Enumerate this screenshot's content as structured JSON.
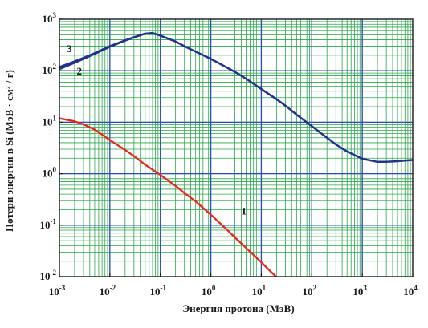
{
  "chart_data": {
    "type": "line",
    "title": "",
    "xlabel": "Энергия протона (МэВ)",
    "ylabel": "Потери энергии в Si (МэВ · см² / г)",
    "x_scale": "log",
    "y_scale": "log",
    "xlim": [
      0.001,
      10000
    ],
    "ylim": [
      0.01,
      1000
    ],
    "grid": true,
    "x_ticks": [
      {
        "base": "10",
        "exp": "-3",
        "value": 0.001
      },
      {
        "base": "10",
        "exp": "-2",
        "value": 0.01
      },
      {
        "base": "10",
        "exp": "-1",
        "value": 0.1
      },
      {
        "base": "10",
        "exp": "0",
        "value": 1
      },
      {
        "base": "10",
        "exp": "1",
        "value": 10
      },
      {
        "base": "10",
        "exp": "2",
        "value": 100
      },
      {
        "base": "10",
        "exp": "3",
        "value": 1000
      },
      {
        "base": "10",
        "exp": "4",
        "value": 10000
      }
    ],
    "y_ticks": [
      {
        "base": "10",
        "exp": "-2",
        "value": 0.01
      },
      {
        "base": "10",
        "exp": "-1",
        "value": 0.1
      },
      {
        "base": "10",
        "exp": "0",
        "value": 1
      },
      {
        "base": "10",
        "exp": "1",
        "value": 10
      },
      {
        "base": "10",
        "exp": "2",
        "value": 100
      },
      {
        "base": "10",
        "exp": "3",
        "value": 1000
      }
    ],
    "series": [
      {
        "name": "1",
        "color": "#e8261e",
        "x": [
          0.001,
          0.002,
          0.003,
          0.005,
          0.01,
          0.02,
          0.03,
          0.05,
          0.1,
          0.2,
          0.3,
          0.5,
          1,
          2,
          3,
          5,
          10,
          15,
          20
        ],
        "y": [
          11.9,
          10.4,
          9.1,
          7.2,
          4.5,
          2.9,
          2.2,
          1.5,
          0.95,
          0.58,
          0.42,
          0.29,
          0.16,
          0.085,
          0.058,
          0.036,
          0.019,
          0.0128,
          0.0098
        ]
      },
      {
        "name": "2",
        "color": "#22318a",
        "x": [
          0.001,
          0.002,
          0.003,
          0.005,
          0.01,
          0.02,
          0.03,
          0.05,
          0.07,
          0.1,
          0.2,
          0.3,
          0.5,
          1,
          2,
          3,
          5,
          10,
          20,
          30,
          50,
          100,
          200,
          300,
          500,
          1000,
          2000,
          3000,
          5000,
          10000
        ],
        "y": [
          108,
          143,
          170,
          213,
          293,
          385,
          445,
          525,
          540,
          480,
          370,
          300,
          235,
          170,
          118,
          95,
          70,
          44,
          28,
          21,
          14,
          8.4,
          5.0,
          3.7,
          2.7,
          1.95,
          1.7,
          1.7,
          1.75,
          1.85
        ]
      },
      {
        "name": "3",
        "color": "#22318a",
        "x": [
          0.001,
          0.002,
          0.003,
          0.005,
          0.01,
          0.02,
          0.03,
          0.05
        ],
        "y": [
          118,
          152,
          178,
          220,
          300,
          390,
          448,
          525
        ]
      }
    ]
  }
}
